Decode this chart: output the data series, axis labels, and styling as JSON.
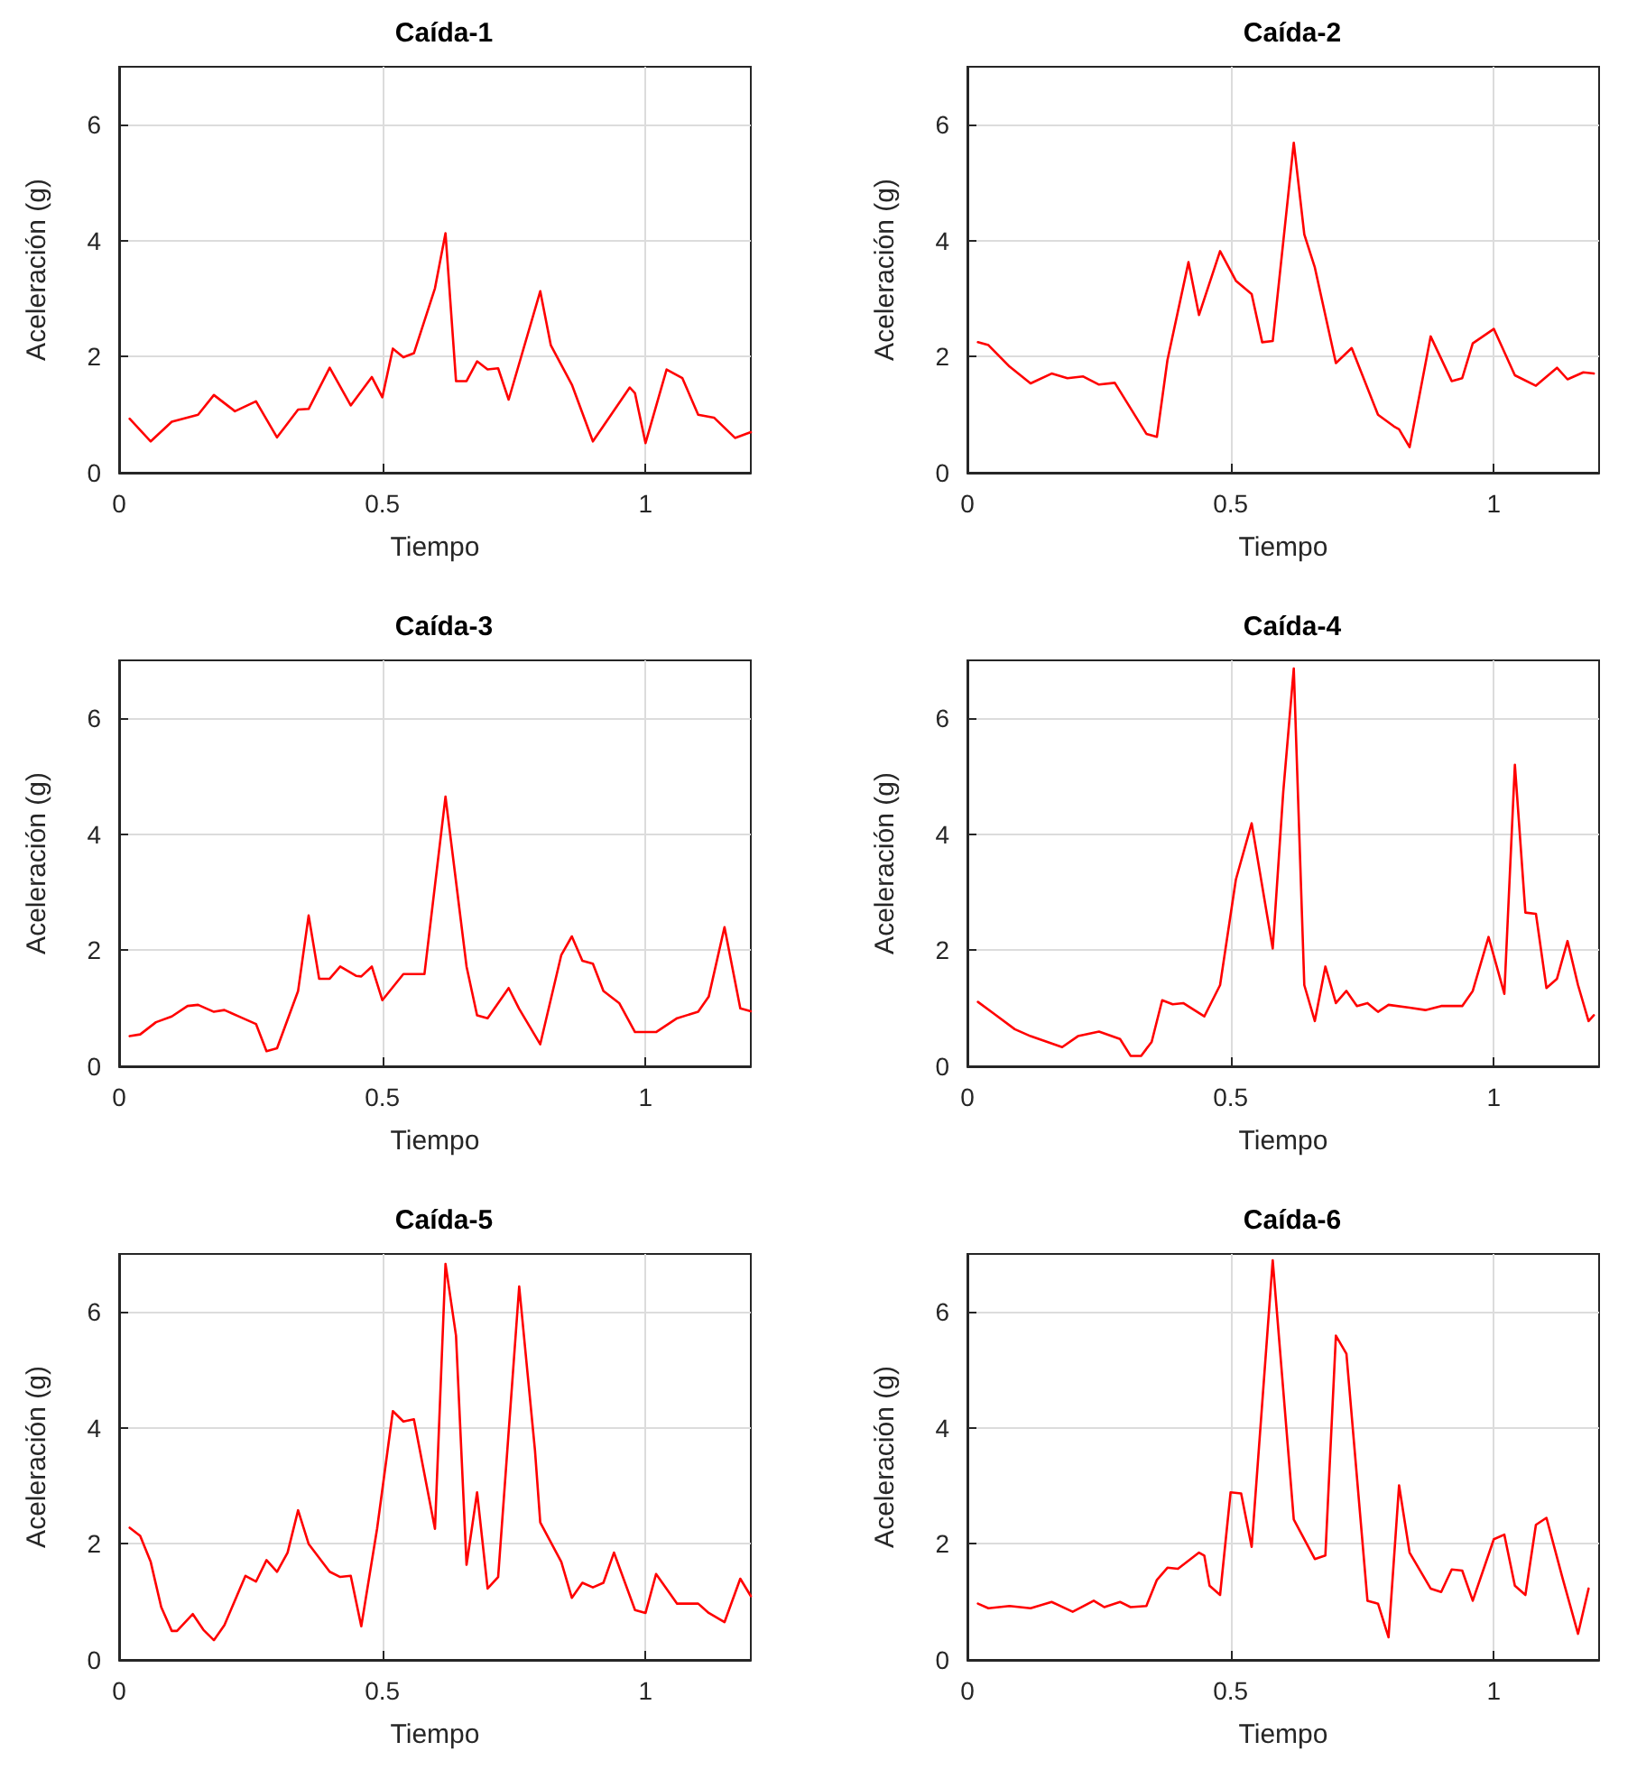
{
  "chart_data": [
    {
      "type": "line",
      "title": "Caída-1",
      "xlabel": "Tiempo",
      "ylabel": "Aceleración (g)",
      "color": "#ff0000",
      "marker": "none",
      "line_style": "solid",
      "grid": true,
      "xlim": [
        0,
        1.2
      ],
      "ylim": [
        0,
        7
      ],
      "xticks": [
        0,
        0.5,
        1
      ],
      "yticks": [
        0,
        2,
        4,
        6
      ],
      "x": [
        0.02,
        0.06,
        0.1,
        0.15,
        0.18,
        0.22,
        0.26,
        0.3,
        0.34,
        0.36,
        0.4,
        0.44,
        0.48,
        0.5,
        0.52,
        0.54,
        0.56,
        0.6,
        0.62,
        0.64,
        0.66,
        0.68,
        0.7,
        0.72,
        0.74,
        0.8,
        0.82,
        0.86,
        0.9,
        0.97,
        0.98,
        1.0,
        1.04,
        1.07,
        1.1,
        1.13,
        1.17,
        1.2
      ],
      "values": [
        0.93,
        0.54,
        0.88,
        1.0,
        1.34,
        1.06,
        1.23,
        0.61,
        1.09,
        1.1,
        1.81,
        1.16,
        1.65,
        1.3,
        2.14,
        1.99,
        2.06,
        3.18,
        4.13,
        1.58,
        1.58,
        1.92,
        1.78,
        1.8,
        1.26,
        3.13,
        2.2,
        1.52,
        0.54,
        1.47,
        1.37,
        0.51,
        1.78,
        1.63,
        1.0,
        0.95,
        0.6,
        0.7
      ]
    },
    {
      "type": "line",
      "title": "Caída-2",
      "xlabel": "Tiempo",
      "ylabel": "Aceleración (g)",
      "color": "#ff0000",
      "marker": "none",
      "line_style": "solid",
      "grid": true,
      "xlim": [
        0,
        1.2
      ],
      "ylim": [
        0,
        7
      ],
      "xticks": [
        0,
        0.5,
        1
      ],
      "yticks": [
        0,
        2,
        4,
        6
      ],
      "x": [
        0.02,
        0.04,
        0.08,
        0.12,
        0.16,
        0.19,
        0.22,
        0.25,
        0.28,
        0.31,
        0.34,
        0.36,
        0.38,
        0.42,
        0.44,
        0.48,
        0.51,
        0.54,
        0.56,
        0.58,
        0.62,
        0.64,
        0.66,
        0.7,
        0.73,
        0.78,
        0.81,
        0.82,
        0.84,
        0.88,
        0.92,
        0.94,
        0.96,
        1.0,
        1.04,
        1.08,
        1.12,
        1.14,
        1.17,
        1.19
      ],
      "values": [
        2.25,
        2.2,
        1.83,
        1.54,
        1.71,
        1.63,
        1.66,
        1.52,
        1.55,
        1.11,
        0.67,
        0.62,
        1.94,
        3.63,
        2.72,
        3.82,
        3.31,
        3.08,
        2.25,
        2.27,
        5.69,
        4.11,
        3.54,
        1.89,
        2.15,
        1.0,
        0.8,
        0.75,
        0.44,
        2.35,
        1.58,
        1.63,
        2.23,
        2.48,
        1.68,
        1.5,
        1.81,
        1.61,
        1.73,
        1.71
      ]
    },
    {
      "type": "line",
      "title": "Caída-3",
      "xlabel": "Tiempo",
      "ylabel": "Aceleración (g)",
      "color": "#ff0000",
      "marker": "none",
      "line_style": "solid",
      "grid": true,
      "xlim": [
        0,
        1.2
      ],
      "ylim": [
        0,
        7
      ],
      "xticks": [
        0,
        0.5,
        1
      ],
      "yticks": [
        0,
        2,
        4,
        6
      ],
      "x": [
        0.02,
        0.04,
        0.07,
        0.1,
        0.13,
        0.15,
        0.18,
        0.2,
        0.23,
        0.26,
        0.28,
        0.3,
        0.34,
        0.36,
        0.38,
        0.4,
        0.42,
        0.45,
        0.46,
        0.48,
        0.5,
        0.54,
        0.58,
        0.62,
        0.66,
        0.68,
        0.7,
        0.74,
        0.76,
        0.8,
        0.84,
        0.86,
        0.88,
        0.9,
        0.92,
        0.95,
        0.98,
        1.02,
        1.06,
        1.1,
        1.12,
        1.15,
        1.18,
        1.2
      ],
      "values": [
        0.52,
        0.55,
        0.76,
        0.86,
        1.04,
        1.06,
        0.94,
        0.97,
        0.85,
        0.73,
        0.26,
        0.31,
        1.3,
        2.6,
        1.51,
        1.51,
        1.72,
        1.56,
        1.55,
        1.72,
        1.14,
        1.59,
        1.59,
        4.65,
        1.72,
        0.88,
        0.83,
        1.35,
        0.99,
        0.38,
        1.92,
        2.24,
        1.82,
        1.77,
        1.3,
        1.09,
        0.59,
        0.59,
        0.83,
        0.94,
        1.2,
        2.4,
        1.0,
        0.95
      ]
    },
    {
      "type": "line",
      "title": "Caída-4",
      "xlabel": "Tiempo",
      "ylabel": "Aceleración (g)",
      "color": "#ff0000",
      "marker": "none",
      "line_style": "solid",
      "grid": true,
      "xlim": [
        0,
        1.2
      ],
      "ylim": [
        0,
        7
      ],
      "xticks": [
        0,
        0.5,
        1
      ],
      "yticks": [
        0,
        2,
        4,
        6
      ],
      "x": [
        0.02,
        0.05,
        0.09,
        0.12,
        0.18,
        0.21,
        0.25,
        0.29,
        0.31,
        0.33,
        0.35,
        0.37,
        0.39,
        0.41,
        0.45,
        0.48,
        0.51,
        0.54,
        0.58,
        0.6,
        0.62,
        0.64,
        0.66,
        0.68,
        0.7,
        0.72,
        0.74,
        0.76,
        0.78,
        0.8,
        0.84,
        0.87,
        0.9,
        0.94,
        0.96,
        0.99,
        1.02,
        1.04,
        1.06,
        1.08,
        1.1,
        1.12,
        1.14,
        1.16,
        1.18,
        1.19
      ],
      "values": [
        1.11,
        0.91,
        0.64,
        0.52,
        0.33,
        0.52,
        0.6,
        0.47,
        0.18,
        0.18,
        0.42,
        1.14,
        1.07,
        1.09,
        0.86,
        1.4,
        3.22,
        4.19,
        2.03,
        4.73,
        6.86,
        1.4,
        0.78,
        1.72,
        1.09,
        1.3,
        1.04,
        1.09,
        0.94,
        1.06,
        1.01,
        0.97,
        1.04,
        1.04,
        1.3,
        2.23,
        1.25,
        5.2,
        2.65,
        2.63,
        1.35,
        1.51,
        2.16,
        1.4,
        0.78,
        0.88
      ]
    },
    {
      "type": "line",
      "title": "Caída-5",
      "xlabel": "Tiempo",
      "ylabel": "Aceleración (g)",
      "color": "#ff0000",
      "marker": "none",
      "line_style": "solid",
      "grid": true,
      "xlim": [
        0,
        1.2
      ],
      "ylim": [
        0,
        7
      ],
      "xticks": [
        0,
        0.5,
        1
      ],
      "yticks": [
        0,
        2,
        4,
        6
      ],
      "x": [
        0.02,
        0.04,
        0.06,
        0.08,
        0.1,
        0.11,
        0.14,
        0.16,
        0.18,
        0.2,
        0.24,
        0.26,
        0.28,
        0.3,
        0.32,
        0.34,
        0.36,
        0.4,
        0.42,
        0.44,
        0.46,
        0.49,
        0.52,
        0.54,
        0.56,
        0.6,
        0.62,
        0.64,
        0.66,
        0.68,
        0.7,
        0.72,
        0.76,
        0.79,
        0.8,
        0.84,
        0.86,
        0.88,
        0.9,
        0.92,
        0.94,
        0.98,
        1.0,
        1.02,
        1.06,
        1.1,
        1.12,
        1.15,
        1.18,
        1.2
      ],
      "values": [
        2.28,
        2.14,
        1.69,
        0.91,
        0.5,
        0.5,
        0.79,
        0.52,
        0.34,
        0.6,
        1.45,
        1.35,
        1.72,
        1.52,
        1.85,
        2.58,
        2.0,
        1.52,
        1.43,
        1.45,
        0.58,
        2.26,
        4.29,
        4.11,
        4.15,
        2.26,
        6.83,
        5.59,
        1.64,
        2.89,
        1.23,
        1.43,
        6.44,
        3.61,
        2.37,
        1.69,
        1.07,
        1.33,
        1.25,
        1.33,
        1.85,
        0.86,
        0.81,
        1.48,
        0.97,
        0.97,
        0.81,
        0.65,
        1.4,
        1.1
      ]
    },
    {
      "type": "line",
      "title": "Caída-6",
      "xlabel": "Tiempo",
      "ylabel": "Aceleración (g)",
      "color": "#ff0000",
      "marker": "none",
      "line_style": "solid",
      "grid": true,
      "xlim": [
        0,
        1.2
      ],
      "ylim": [
        0,
        7
      ],
      "xticks": [
        0,
        0.5,
        1
      ],
      "yticks": [
        0,
        2,
        4,
        6
      ],
      "x": [
        0.02,
        0.04,
        0.08,
        0.12,
        0.16,
        0.2,
        0.24,
        0.26,
        0.29,
        0.31,
        0.34,
        0.36,
        0.38,
        0.4,
        0.44,
        0.45,
        0.46,
        0.48,
        0.5,
        0.52,
        0.54,
        0.58,
        0.62,
        0.66,
        0.68,
        0.7,
        0.72,
        0.76,
        0.78,
        0.8,
        0.82,
        0.84,
        0.88,
        0.9,
        0.92,
        0.94,
        0.96,
        1.0,
        1.02,
        1.04,
        1.06,
        1.08,
        1.1,
        1.13,
        1.16,
        1.18
      ],
      "values": [
        0.97,
        0.89,
        0.93,
        0.89,
        1.0,
        0.83,
        1.02,
        0.91,
        1.0,
        0.91,
        0.93,
        1.38,
        1.59,
        1.57,
        1.85,
        1.8,
        1.28,
        1.12,
        2.89,
        2.87,
        1.95,
        6.89,
        2.42,
        1.74,
        1.8,
        5.59,
        5.28,
        1.02,
        0.97,
        0.39,
        3.01,
        1.85,
        1.23,
        1.17,
        1.56,
        1.54,
        1.02,
        2.08,
        2.16,
        1.28,
        1.12,
        2.33,
        2.45,
        1.43,
        0.45,
        1.23
      ]
    }
  ]
}
